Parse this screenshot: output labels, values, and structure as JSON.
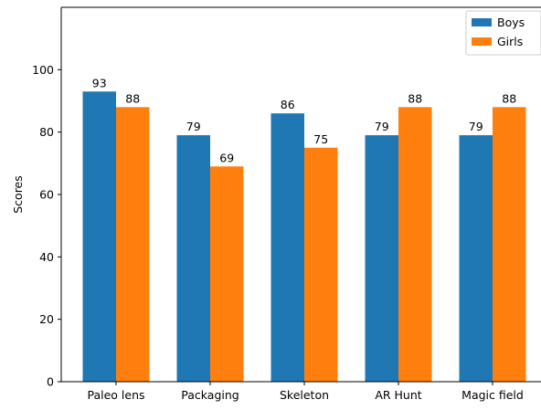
{
  "chart_data": {
    "type": "bar",
    "categories": [
      "Paleo lens",
      "Packaging",
      "Skeleton",
      "AR Hunt",
      "Magic field"
    ],
    "series": [
      {
        "name": "Boys",
        "values": [
          93,
          79,
          86,
          79,
          79
        ],
        "color": "#1f77b4"
      },
      {
        "name": "Girls",
        "values": [
          88,
          69,
          75,
          88,
          88
        ],
        "color": "#ff7f0e"
      }
    ],
    "title": "",
    "xlabel": "",
    "ylabel": "Scores",
    "ylim": [
      0,
      120
    ],
    "yticks": [
      0,
      20,
      40,
      60,
      80,
      100
    ],
    "grid": false,
    "legend_position": "top-right",
    "data_labels": true
  }
}
